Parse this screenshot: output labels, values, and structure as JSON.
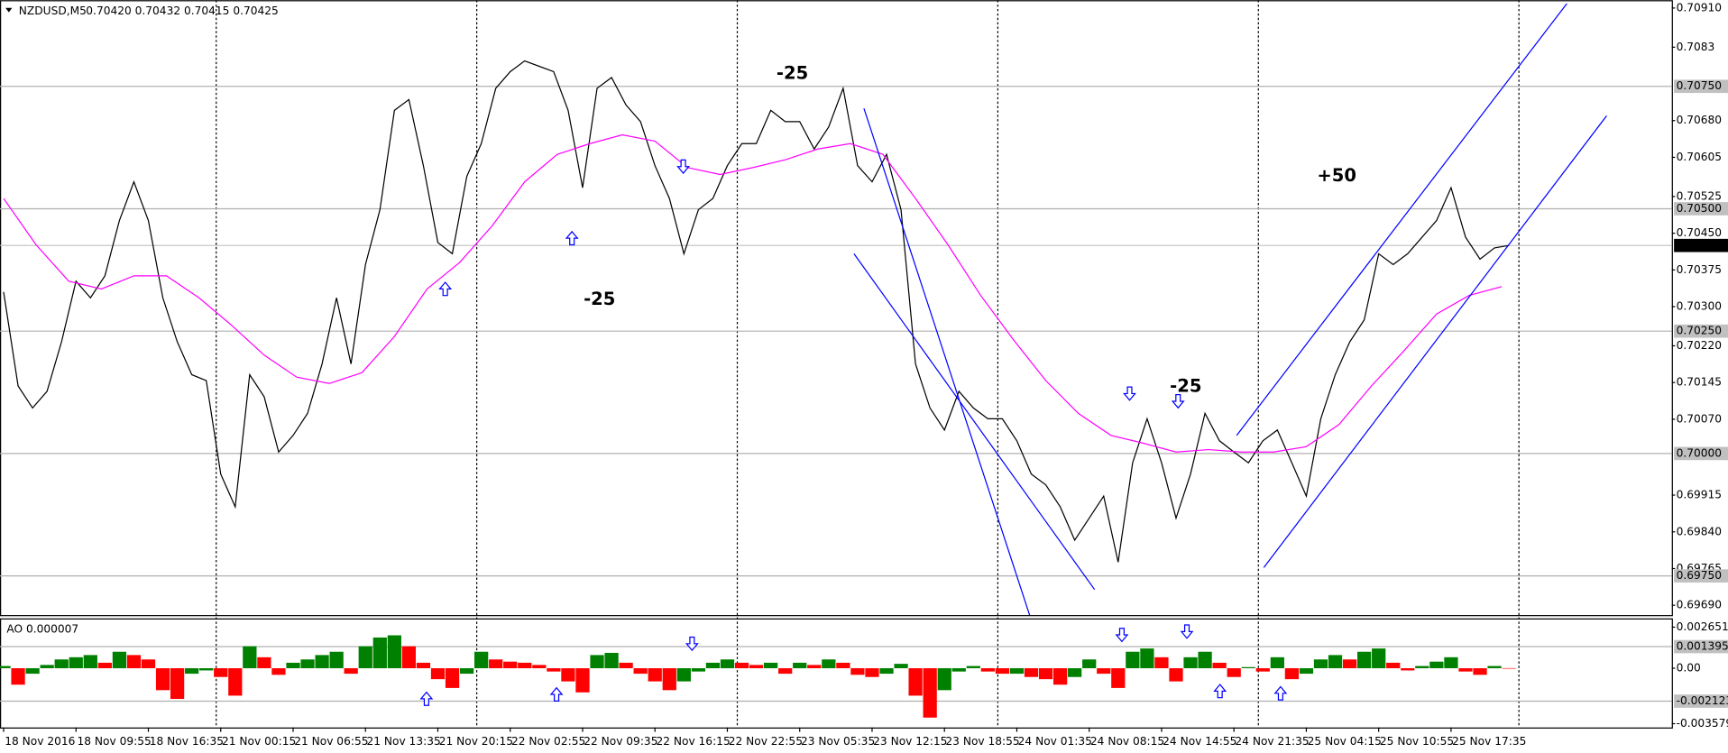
{
  "chart_data": [
    {
      "type": "line",
      "title": "NZDUSD,M5",
      "subtitle": "0.70420 0.70432 0.70415 0.70425",
      "x": [
        0,
        16,
        32,
        48,
        64,
        80,
        96,
        112,
        128,
        144,
        160,
        176,
        192,
        208,
        224,
        240,
        256,
        272,
        288,
        304,
        320,
        336,
        352,
        368,
        384,
        400,
        416,
        432,
        448,
        464,
        480,
        496,
        512,
        528,
        544,
        560,
        576,
        592,
        608,
        624,
        640,
        656,
        672,
        688,
        704,
        720,
        736,
        752,
        768,
        784,
        800,
        816,
        832,
        848,
        864,
        880,
        896,
        912,
        928,
        944,
        960,
        976,
        992,
        1008,
        1024,
        1040,
        1056,
        1072,
        1088,
        1104,
        1120,
        1136,
        1152,
        1168,
        1184,
        1200,
        1216,
        1232,
        1248,
        1264,
        1280,
        1296,
        1312,
        1328,
        1344,
        1360,
        1376,
        1392,
        1408,
        1424,
        1440,
        1456,
        1472,
        1488,
        1504,
        1520,
        1536,
        1552,
        1568,
        1584,
        1600,
        1616,
        1632,
        1648,
        1664
      ],
      "series": [
        {
          "color": "#000000",
          "values": [
            0.7033,
            0.70138,
            0.70093,
            0.70127,
            0.70228,
            0.70352,
            0.70318,
            0.70363,
            0.70476,
            0.70555,
            0.70476,
            0.70318,
            0.70228,
            0.70161,
            0.70149,
            0.69958,
            0.69891,
            0.70161,
            0.70116,
            0.70003,
            0.70037,
            0.70082,
            0.70183,
            0.70318,
            0.70183,
            0.70386,
            0.70498,
            0.70701,
            0.70723,
            0.70588,
            0.70431,
            0.70408,
            0.70566,
            0.70633,
            0.70746,
            0.7078,
            0.70802,
            0.70791,
            0.7078,
            0.70701,
            0.70543,
            0.70746,
            0.70768,
            0.70712,
            0.70678,
            0.70588,
            0.70521,
            0.70408,
            0.70498,
            0.70521,
            0.70588,
            0.70633,
            0.70633,
            0.70701,
            0.70678,
            0.70678,
            0.70622,
            0.70667,
            0.70746,
            0.70588,
            0.70555,
            0.70611,
            0.70498,
            0.70183,
            0.70093,
            0.70048,
            0.70127,
            0.70093,
            0.70071,
            0.70071,
            0.70026,
            0.69958,
            0.69936,
            0.69891,
            0.69823,
            0.69868,
            0.69913,
            0.69778,
            0.69981,
            0.70071,
            0.69981,
            0.69868,
            0.69958,
            0.70082,
            0.70026,
            0.70003,
            0.69981,
            0.70026,
            0.70048,
            0.69981,
            0.69913,
            0.70071,
            0.70161,
            0.70228,
            0.70273,
            0.70408,
            0.70386,
            0.70408,
            0.70442,
            0.70476,
            0.70543,
            0.70442,
            0.70397,
            0.7042,
            0.70425
          ]
        },
        {
          "color": "#ff00ff",
          "x": [
            0,
            36,
            72,
            108,
            144,
            180,
            216,
            252,
            288,
            324,
            360,
            396,
            432,
            468,
            504,
            540,
            576,
            612,
            648,
            684,
            720,
            756,
            792,
            828,
            864,
            900,
            936,
            972,
            1008,
            1044,
            1080,
            1116,
            1152,
            1188,
            1224,
            1260,
            1296,
            1332,
            1368,
            1404,
            1440,
            1476,
            1512,
            1548,
            1584,
            1620,
            1656
          ],
          "values": [
            0.70521,
            0.70426,
            0.70352,
            0.70336,
            0.70363,
            0.70363,
            0.70318,
            0.70262,
            0.70201,
            0.70156,
            0.70143,
            0.70165,
            0.70239,
            0.70336,
            0.7039,
            0.70465,
            0.70555,
            0.70611,
            0.70633,
            0.70651,
            0.70638,
            0.70584,
            0.7057,
            0.70584,
            0.706,
            0.70622,
            0.70633,
            0.70611,
            0.70521,
            0.70426,
            0.70323,
            0.70233,
            0.70149,
            0.70082,
            0.70037,
            0.70021,
            0.70003,
            0.70008,
            0.70003,
            0.70003,
            0.70014,
            0.70059,
            0.70138,
            0.7021,
            0.70285,
            0.70323,
            0.70341
          ]
        }
      ],
      "xlim": [
        -4,
        1844
      ],
      "ylim": [
        0.6967,
        0.70926
      ],
      "yticks": [
        {
          "value": 0.7091,
          "label": "0.70910"
        },
        0.7083,
        {
          "value": 0.7068,
          "label": "0.70680"
        },
        0.70605,
        0.70525,
        {
          "value": 0.7045,
          "label": "0.70450"
        },
        0.70375,
        {
          "value": 0.703,
          "label": "0.70300"
        },
        {
          "value": 0.7022,
          "label": "0.70220"
        },
        0.70145,
        {
          "value": 0.7007,
          "label": "0.70070"
        },
        0.69915,
        {
          "value": 0.6984,
          "label": "0.69840"
        },
        0.69765,
        {
          "value": 0.6969,
          "label": "0.69690"
        }
      ],
      "levels": [
        {
          "value": 0.7075,
          "label": "0.70750"
        },
        {
          "value": 0.705,
          "label": "0.70500"
        },
        {
          "value": 0.7025,
          "label": "0.70250"
        },
        {
          "value": 0.7,
          "label": "0.70000"
        },
        {
          "value": 0.6975,
          "label": "0.69750"
        }
      ],
      "last": 0.70425,
      "xticks": [
        {
          "value": 0,
          "label": "18 Nov 2016"
        },
        {
          "value": 80,
          "label": "18 Nov 09:55"
        },
        {
          "value": 160,
          "label": "18 Nov 16:35"
        },
        {
          "value": 240,
          "label": "21 Nov 00:15"
        },
        {
          "value": 320,
          "label": "21 Nov 06:55"
        },
        {
          "value": 400,
          "label": "21 Nov 13:35"
        },
        {
          "value": 480,
          "label": "21 Nov 20:15"
        },
        {
          "value": 560,
          "label": "22 Nov 02:55"
        },
        {
          "value": 640,
          "label": "22 Nov 09:35"
        },
        {
          "value": 720,
          "label": "22 Nov 16:15"
        },
        {
          "value": 800,
          "label": "22 Nov 22:55"
        },
        {
          "value": 880,
          "label": "23 Nov 05:35"
        },
        {
          "value": 960,
          "label": "23 Nov 12:15"
        },
        {
          "value": 1040,
          "label": "23 Nov 18:55"
        },
        {
          "value": 1120,
          "label": "24 Nov 01:35"
        },
        {
          "value": 1200,
          "label": "24 Nov 08:15"
        },
        {
          "value": 1280,
          "label": "24 Nov 14:55"
        },
        {
          "value": 1360,
          "label": "24 Nov 21:35"
        },
        {
          "value": 1440,
          "label": "25 Nov 04:15"
        },
        {
          "value": 1520,
          "label": "25 Nov 10:55"
        },
        {
          "value": 1600,
          "label": "25 Nov 17:35"
        }
      ],
      "separators": [
        235,
        523,
        811,
        1099,
        1387,
        1675
      ],
      "trendline_color": "#0000ff",
      "trendlines": [
        {
          "x": [
            951,
            1135
          ],
          "values": [
            0.70705,
            0.69665
          ]
        },
        {
          "x": [
            940,
            1206
          ],
          "values": [
            0.70408,
            0.69722
          ]
        },
        {
          "x": [
            1363,
            1728
          ],
          "values": [
            0.70037,
            0.70919
          ]
        },
        {
          "x": [
            1393,
            1772
          ],
          "values": [
            0.69767,
            0.7069
          ]
        }
      ],
      "annotations": [
        {
          "text": "-25",
          "color": "#ff0000"
        },
        {
          "text": "-25",
          "color": "#ff0000"
        },
        {
          "text": "-25",
          "color": "#ff0000"
        },
        {
          "text": "+50",
          "color": "#008000"
        }
      ],
      "grid": false
    },
    {
      "type": "bar",
      "title": "AO 0.000007",
      "x": [
        0,
        16,
        32,
        48,
        64,
        80,
        96,
        112,
        128,
        144,
        160,
        176,
        192,
        208,
        224,
        240,
        256,
        272,
        288,
        304,
        320,
        336,
        352,
        368,
        384,
        400,
        416,
        432,
        448,
        464,
        480,
        496,
        512,
        528,
        544,
        560,
        576,
        592,
        608,
        624,
        640,
        656,
        672,
        688,
        704,
        720,
        736,
        752,
        768,
        784,
        800,
        816,
        832,
        848,
        864,
        880,
        896,
        912,
        928,
        944,
        960,
        976,
        992,
        1008,
        1024,
        1040,
        1056,
        1072,
        1088,
        1104,
        1120,
        1136,
        1152,
        1168,
        1184,
        1200,
        1216,
        1232,
        1248,
        1264,
        1280,
        1296,
        1312,
        1328,
        1344,
        1360,
        1376,
        1392,
        1408,
        1424,
        1440,
        1456,
        1472,
        1488,
        1504,
        1520,
        1536,
        1552,
        1568,
        1584,
        1600,
        1616,
        1632,
        1648,
        1664
      ],
      "values": [
        0.000142,
        -0.001062,
        -0.000354,
        0.000212,
        0.000566,
        0.000708,
        0.00085,
        0.000354,
        0.001062,
        0.00085,
        0.000566,
        -0.001416,
        -0.001982,
        -0.000354,
        -0.000142,
        -0.000566,
        -0.00177,
        0.001416,
        0.000708,
        -0.000425,
        0.000354,
        0.000566,
        0.00085,
        0.001062,
        -0.000354,
        0.001416,
        0.001982,
        0.002124,
        0.001416,
        0.000354,
        -0.000708,
        -0.001274,
        -0.000354,
        0.001062,
        0.000566,
        0.000425,
        0.000354,
        0.000212,
        -0.000212,
        -0.00085,
        -0.001558,
        0.00085,
        0.000991,
        0.000354,
        -0.000354,
        -0.00085,
        -0.001416,
        -0.00085,
        -0.000212,
        0.000354,
        0.000566,
        0.000354,
        0.000212,
        0.000354,
        -0.000354,
        0.000354,
        0.000212,
        0.000566,
        0.000354,
        -0.000425,
        -0.000566,
        -0.000354,
        0.000283,
        -0.00177,
        -0.003186,
        -0.001416,
        -0.000212,
        0.000142,
        -0.000212,
        -0.000354,
        -0.000354,
        -0.000566,
        -0.000708,
        -0.001062,
        -0.000566,
        0.000566,
        -0.000354,
        -0.001274,
        0.001062,
        0.001274,
        0.000708,
        -0.00085,
        0.000708,
        0.001062,
        0.000354,
        -0.000566,
        7.1e-05,
        -0.000212,
        0.000708,
        -0.000708,
        -0.000354,
        0.000566,
        0.00085,
        0.000566,
        0.001062,
        0.001274,
        0.000354,
        -0.000142,
        0.000142,
        0.000425,
        0.000708,
        -0.000212,
        -0.000425,
        0.000142,
        7e-06
      ],
      "up_color": "#008000",
      "down_color": "#ff0000",
      "xlim": [
        -4,
        1844
      ],
      "ylim": [
        -0.003823,
        0.003217
      ],
      "yticks": [
        0.002651,
        {
          "value": 0,
          "label": "0.00"
        },
        -0.003579
      ],
      "levels": [
        0.001395,
        -0.002123
      ],
      "grid": false
    }
  ]
}
